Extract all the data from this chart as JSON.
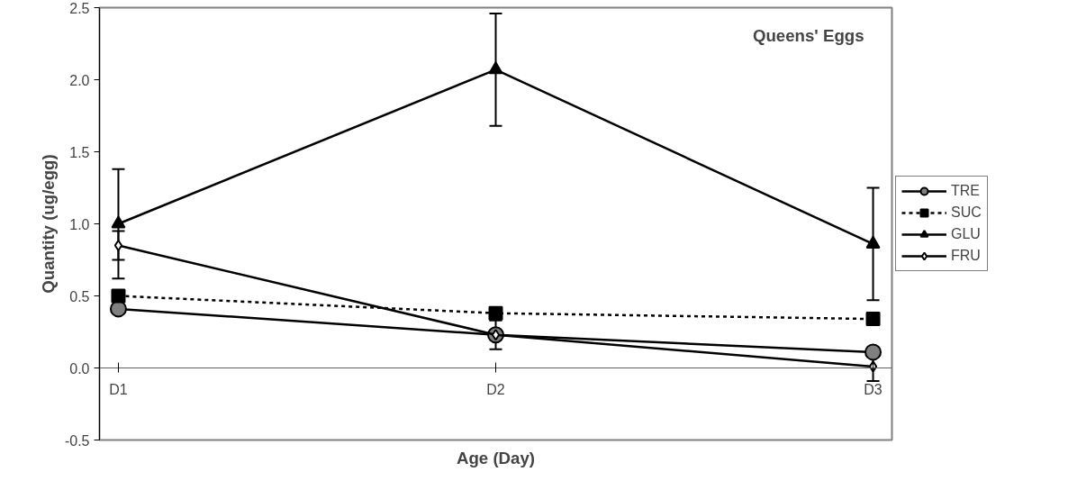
{
  "chart_data": {
    "type": "line",
    "title": "Queens' Eggs",
    "xlabel": "Age (Day)",
    "ylabel": "Quantity (ug/egg)",
    "categories": [
      "D1",
      "D2",
      "D3"
    ],
    "series": [
      {
        "name": "TRE",
        "color": "#000000",
        "colors": [
          "#808080",
          "#808080",
          "#808080"
        ],
        "marker": "circle",
        "line_style": "solid",
        "values": [
          0.41,
          0.23,
          0.11
        ]
      },
      {
        "name": "SUC",
        "color": "#000000",
        "marker": "square",
        "line_style": "dashed",
        "values": [
          0.5,
          0.38,
          0.34
        ]
      },
      {
        "name": "GLU",
        "color": "#000000",
        "marker": "triangle",
        "line_style": "solid",
        "values": [
          1.0,
          2.07,
          0.86
        ],
        "errors": [
          0.38,
          0.39,
          0.39
        ]
      },
      {
        "name": "FRU",
        "color": "#000000",
        "colors": [
          "#ffffff",
          "#ffffff",
          "#ffffff"
        ],
        "marker": "diamond",
        "line_style": "solid",
        "values": [
          0.85,
          0.23,
          0.01
        ],
        "errors": [
          0.1,
          0.1,
          0.1
        ]
      }
    ],
    "ylim": [
      -0.5,
      2.5
    ],
    "yticks": [
      {
        "value": -0.5,
        "label": "-0.5"
      },
      {
        "value": 0,
        "label": "0.0"
      },
      {
        "value": 0.5,
        "label": "0.5"
      },
      {
        "value": 1,
        "label": "1.0"
      },
      {
        "value": 1.5,
        "label": "1.5"
      },
      {
        "value": 2,
        "label": "2.0"
      },
      {
        "value": 2.5,
        "label": "2.5"
      }
    ],
    "grid": false,
    "legend": "right"
  }
}
